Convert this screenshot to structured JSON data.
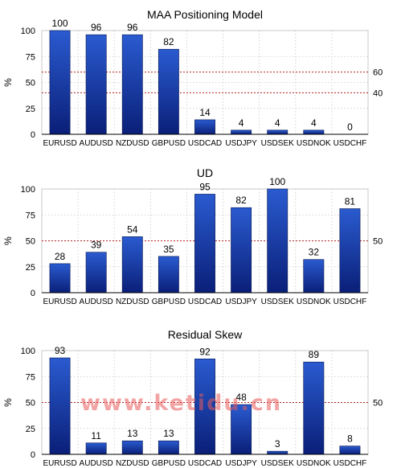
{
  "colors": {
    "bar_top": "#2a5bd0",
    "bar_bottom": "#0a1f78",
    "reference_line": "#b22222",
    "grid": "#c8c8c8",
    "axis": "#000000"
  },
  "watermark": {
    "text": "www.ketidu.cn"
  },
  "chart_data": [
    {
      "type": "bar",
      "title": "MAA Positioning Model",
      "ylabel": "%",
      "xlabel": "",
      "ylim": [
        0,
        100
      ],
      "yticks": [
        0,
        25,
        50,
        75,
        100
      ],
      "categories": [
        "EURUSD",
        "AUDUSD",
        "NZDUSD",
        "GBPUSD",
        "USDCAD",
        "USDJPY",
        "USDSEK",
        "USDNOK",
        "USDCHF"
      ],
      "values": [
        100,
        96,
        96,
        82,
        14,
        4,
        4,
        4,
        0
      ],
      "reference_lines": [
        60,
        40
      ],
      "grid": true
    },
    {
      "type": "bar",
      "title": "UD",
      "ylabel": "%",
      "xlabel": "",
      "ylim": [
        0,
        100
      ],
      "yticks": [
        0,
        25,
        50,
        75,
        100
      ],
      "categories": [
        "EURUSD",
        "AUDUSD",
        "NZDUSD",
        "GBPUSD",
        "USDCAD",
        "USDJPY",
        "USDSEK",
        "USDNOK",
        "USDCHF"
      ],
      "values": [
        28,
        39,
        54,
        35,
        95,
        82,
        100,
        32,
        81
      ],
      "reference_lines": [
        50
      ],
      "grid": true
    },
    {
      "type": "bar",
      "title": "Residual Skew",
      "ylabel": "%",
      "xlabel": "",
      "ylim": [
        0,
        100
      ],
      "yticks": [
        0,
        25,
        50,
        75,
        100
      ],
      "categories": [
        "EURUSD",
        "AUDUSD",
        "NZDUSD",
        "GBPUSD",
        "USDCAD",
        "USDJPY",
        "USDSEK",
        "USDNOK",
        "USDCHF"
      ],
      "values": [
        93,
        11,
        13,
        13,
        92,
        48,
        3,
        89,
        8
      ],
      "reference_lines": [
        50
      ],
      "grid": true
    }
  ]
}
